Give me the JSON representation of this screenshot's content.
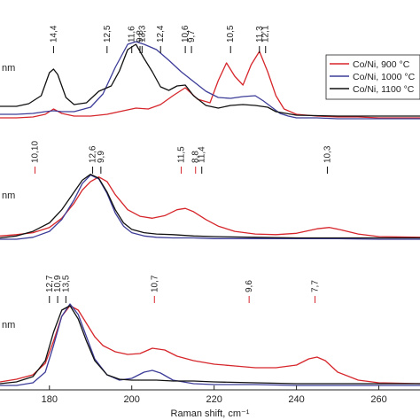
{
  "chart_data": {
    "type": "line",
    "xlabel": "Raman shift, cm⁻¹",
    "xlim": [
      168,
      270
    ],
    "xticks": [
      180,
      200,
      220,
      240,
      260
    ],
    "legend": {
      "placement": "top-right",
      "entries": [
        {
          "label": "Co/Ni, 900 °C",
          "color": "#d6262b"
        },
        {
          "label": "Co/Ni, 1000 °C",
          "color": "#3d3d99"
        },
        {
          "label": "Co/Ni, 1100 °C",
          "color": "#111111"
        }
      ]
    },
    "panels": [
      {
        "unit_label": "nm",
        "annotations": [
          {
            "label": "14,4",
            "x": 181,
            "color": "#111111"
          },
          {
            "label": "12,5",
            "x": 194,
            "color": "#111111"
          },
          {
            "label": "11,6",
            "x": 200,
            "color": "#111111"
          },
          {
            "label": "13,3",
            "x": 202.5,
            "color": "#111111"
          },
          {
            "label": "9,8",
            "x": 202,
            "color": "#111111"
          },
          {
            "label": "12,4",
            "x": 207,
            "color": "#111111"
          },
          {
            "label": "10,6",
            "x": 213,
            "color": "#111111"
          },
          {
            "label": "9,7",
            "x": 214.5,
            "color": "#111111"
          },
          {
            "label": "10,5",
            "x": 224,
            "color": "#111111"
          },
          {
            "label": "11,3",
            "x": 231,
            "color": "#111111"
          },
          {
            "label": "12,1",
            "x": 232.5,
            "color": "#111111"
          }
        ],
        "series": [
          {
            "name": "Co/Ni, 900 °C",
            "color": "#d6262b",
            "x": [
              168,
              172,
              176,
              179,
              181,
              183,
              186,
              190,
              194,
              198,
              201,
              204,
              207,
              210,
              213,
              216,
              219,
              221,
              223,
              225,
              227,
              229,
              231,
              233,
              235,
              237,
              240,
              245,
              250,
              255,
              260,
              270
            ],
            "y": [
              0.03,
              0.03,
              0.04,
              0.07,
              0.13,
              0.08,
              0.05,
              0.05,
              0.07,
              0.11,
              0.14,
              0.13,
              0.18,
              0.28,
              0.37,
              0.24,
              0.2,
              0.45,
              0.65,
              0.5,
              0.4,
              0.63,
              0.78,
              0.55,
              0.28,
              0.13,
              0.07,
              0.05,
              0.04,
              0.04,
              0.03,
              0.03
            ]
          },
          {
            "name": "Co/Ni, 1000 °C",
            "color": "#3d3d99",
            "x": [
              168,
              172,
              176,
              179,
              181,
              183,
              186,
              190,
              193,
              196,
              199,
              201,
              203,
              206,
              209,
              212,
              215,
              218,
              221,
              224,
              227,
              230,
              232,
              234,
              236,
              238,
              240,
              245,
              250,
              255,
              260,
              270
            ],
            "y": [
              0.07,
              0.07,
              0.08,
              0.1,
              0.11,
              0.1,
              0.1,
              0.15,
              0.3,
              0.6,
              0.86,
              0.89,
              0.86,
              0.8,
              0.68,
              0.55,
              0.44,
              0.33,
              0.26,
              0.25,
              0.27,
              0.28,
              0.22,
              0.15,
              0.08,
              0.05,
              0.03,
              0.03,
              0.02,
              0.02,
              0.02,
              0.02
            ]
          },
          {
            "name": "Co/Ni, 1100 °C",
            "color": "#111111",
            "x": [
              168,
              172,
              175,
              178,
              180,
              181,
              182,
              184,
              186,
              189,
              192,
              195,
              197,
              199,
              201,
              203,
              205,
              207,
              209,
              211,
              213,
              215,
              218,
              221,
              224,
              227,
              230,
              233,
              235,
              240,
              250,
              270
            ],
            "y": [
              0.16,
              0.16,
              0.19,
              0.28,
              0.54,
              0.58,
              0.52,
              0.26,
              0.18,
              0.2,
              0.33,
              0.39,
              0.56,
              0.8,
              0.86,
              0.7,
              0.55,
              0.38,
              0.34,
              0.39,
              0.4,
              0.28,
              0.17,
              0.14,
              0.17,
              0.18,
              0.17,
              0.15,
              0.1,
              0.06,
              0.05,
              0.05
            ]
          }
        ]
      },
      {
        "unit_label": "nm",
        "annotations": [
          {
            "label": "10,10",
            "x": 176.5,
            "color": "#d6262b"
          },
          {
            "label": "12,6",
            "x": 190.5,
            "color": "#111111"
          },
          {
            "label": "9,9",
            "x": 192.5,
            "color": "#111111"
          },
          {
            "label": "11,5",
            "x": 212,
            "color": "#d6262b"
          },
          {
            "label": "8,8",
            "x": 215.5,
            "color": "#d6262b"
          },
          {
            "label": "11,4",
            "x": 217,
            "color": "#111111"
          },
          {
            "label": "10,3",
            "x": 247.5,
            "color": "#111111"
          }
        ],
        "series": [
          {
            "name": "Co/Ni, 900 °C",
            "color": "#d6262b",
            "x": [
              168,
              172,
              176,
              180,
              183,
              186,
              188,
              190,
              192,
              194,
              196,
              199,
              202,
              205,
              208,
              211,
              213,
              215,
              218,
              221,
              225,
              230,
              235,
              240,
              245,
              248,
              251,
              255,
              260,
              270
            ],
            "y": [
              0.05,
              0.07,
              0.1,
              0.18,
              0.32,
              0.55,
              0.75,
              0.88,
              0.95,
              0.88,
              0.68,
              0.45,
              0.35,
              0.32,
              0.36,
              0.45,
              0.47,
              0.42,
              0.3,
              0.2,
              0.12,
              0.08,
              0.07,
              0.09,
              0.16,
              0.18,
              0.14,
              0.08,
              0.04,
              0.03
            ]
          },
          {
            "name": "Co/Ni, 1000 °C",
            "color": "#3d3d99",
            "x": [
              168,
              172,
              176,
              180,
              183,
              186,
              188,
              190,
              192,
              194,
              196,
              198,
              200,
              203,
              206,
              210,
              215,
              220,
              230,
              240,
              250,
              260,
              270
            ],
            "y": [
              0.0,
              0.0,
              0.03,
              0.12,
              0.3,
              0.6,
              0.85,
              0.98,
              0.92,
              0.7,
              0.4,
              0.2,
              0.1,
              0.05,
              0.03,
              0.02,
              0.02,
              0.01,
              0.01,
              0.01,
              0.01,
              0.0,
              0.0
            ]
          },
          {
            "name": "Co/Ni, 1100 °C",
            "color": "#111111",
            "x": [
              168,
              172,
              176,
              180,
              183,
              186,
              188,
              190,
              192,
              194,
              196,
              198,
              200,
              203,
              206,
              210,
              215,
              220,
              230,
              240,
              250,
              260,
              270
            ],
            "y": [
              0.02,
              0.05,
              0.12,
              0.25,
              0.45,
              0.72,
              0.9,
              0.99,
              0.93,
              0.72,
              0.45,
              0.25,
              0.15,
              0.1,
              0.08,
              0.07,
              0.05,
              0.04,
              0.03,
              0.02,
              0.02,
              0.02,
              0.02
            ]
          }
        ]
      },
      {
        "unit_label": "nm",
        "annotations": [
          {
            "label": "12,7",
            "x": 180,
            "color": "#111111"
          },
          {
            "label": "10,9",
            "x": 182,
            "color": "#111111"
          },
          {
            "label": "13,5",
            "x": 184,
            "color": "#111111"
          },
          {
            "label": "10,7",
            "x": 205.5,
            "color": "#d6262b"
          },
          {
            "label": "9,6",
            "x": 228.5,
            "color": "#d6262b"
          },
          {
            "label": "7,7",
            "x": 244.5,
            "color": "#d6262b"
          }
        ],
        "series": [
          {
            "name": "Co/Ni, 900 °C",
            "color": "#d6262b",
            "x": [
              168,
              172,
              176,
              179,
              181,
              183,
              185,
              187,
              189,
              191,
              193,
              196,
              199,
              202,
              205,
              208,
              211,
              215,
              220,
              225,
              230,
              235,
              240,
              243,
              245,
              247,
              250,
              255,
              260,
              270
            ],
            "y": [
              0.04,
              0.07,
              0.12,
              0.25,
              0.5,
              0.78,
              0.9,
              0.85,
              0.7,
              0.55,
              0.45,
              0.38,
              0.35,
              0.36,
              0.42,
              0.4,
              0.33,
              0.28,
              0.24,
              0.22,
              0.2,
              0.2,
              0.23,
              0.3,
              0.32,
              0.28,
              0.15,
              0.06,
              0.03,
              0.02
            ]
          },
          {
            "name": "Co/Ni, 1000 °C",
            "color": "#3d3d99",
            "x": [
              168,
              172,
              176,
              179,
              181,
              183,
              185,
              187,
              189,
              191,
              194,
              197,
              200,
              203,
              205,
              207,
              210,
              215,
              220,
              230,
              240,
              250,
              260,
              270
            ],
            "y": [
              0.0,
              0.0,
              0.03,
              0.15,
              0.45,
              0.78,
              0.92,
              0.8,
              0.55,
              0.3,
              0.12,
              0.06,
              0.08,
              0.15,
              0.17,
              0.14,
              0.06,
              0.02,
              0.01,
              0.01,
              0.0,
              0.0,
              0.0,
              0.0
            ]
          },
          {
            "name": "Co/Ni, 1100 °C",
            "color": "#111111",
            "x": [
              168,
              172,
              176,
              179,
              181,
              183,
              185,
              187,
              189,
              191,
              194,
              197,
              200,
              203,
              206,
              210,
              215,
              220,
              230,
              240,
              250,
              260,
              270
            ],
            "y": [
              0.02,
              0.04,
              0.1,
              0.28,
              0.6,
              0.85,
              0.9,
              0.75,
              0.5,
              0.28,
              0.12,
              0.07,
              0.06,
              0.06,
              0.06,
              0.05,
              0.05,
              0.04,
              0.03,
              0.02,
              0.02,
              0.02,
              0.02
            ]
          }
        ]
      }
    ]
  }
}
